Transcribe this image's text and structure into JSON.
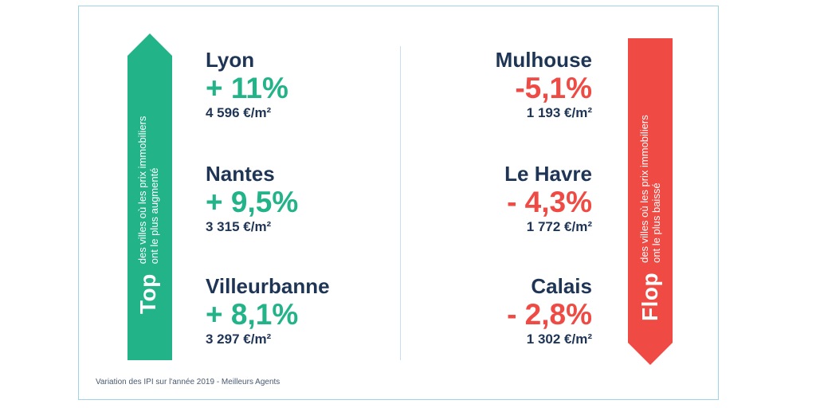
{
  "top_panel": {
    "title": "Top",
    "subtitle_line1": "des villes où les prix immobiliers",
    "subtitle_line2": "ont le plus augmenté",
    "color": "#22b389"
  },
  "flop_panel": {
    "title": "Flop",
    "subtitle_line1": "des villes où les prix immobiliers",
    "subtitle_line2": "ont le plus baissé",
    "color": "#ef4a43"
  },
  "top_cities": [
    {
      "name": "Lyon",
      "change": "+ 11%",
      "price": "4 596 €/m²"
    },
    {
      "name": "Nantes",
      "change": "+ 9,5%",
      "price": "3 315 €/m²"
    },
    {
      "name": "Villeurbanne",
      "change": "+ 8,1%",
      "price": "3 297 €/m²"
    }
  ],
  "flop_cities": [
    {
      "name": "Mulhouse",
      "change": "-5,1%",
      "price": "1 193 €/m²"
    },
    {
      "name": "Le Havre",
      "change": "- 4,3%",
      "price": "1 772 €/m²"
    },
    {
      "name": "Calais",
      "change": "- 2,8%",
      "price": "1 302 €/m²"
    }
  ],
  "footnote": "Variation des IPI sur l'année 2019 - Meilleurs Agents"
}
